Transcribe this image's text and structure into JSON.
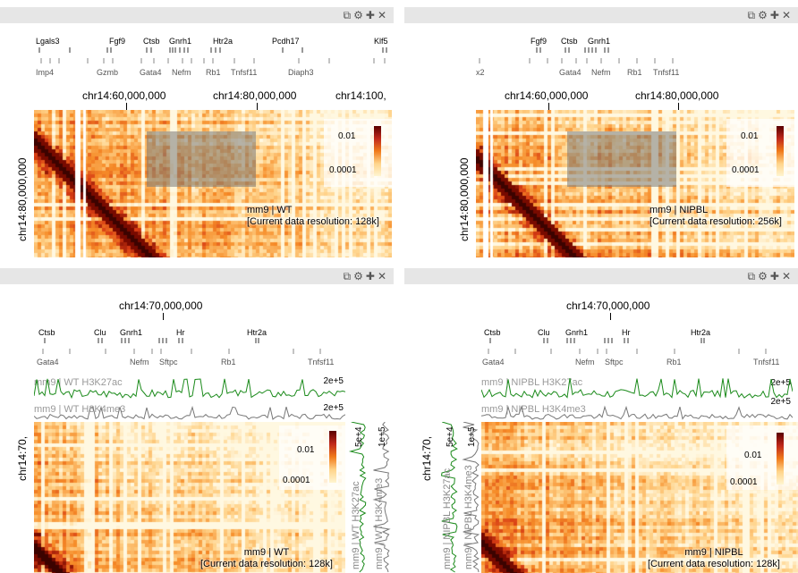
{
  "panels": [
    {
      "id": "top-left",
      "controls": [
        "⧉",
        "⚙",
        "✚",
        "✕"
      ],
      "genes_top": [
        "Lgals3",
        "Fgf9",
        "Ctsb",
        "Gnrh1",
        "Htr2a",
        "Pcdh17",
        "Klf5"
      ],
      "genes_bottom": [
        "Imp4",
        "Gzmb",
        "Gata4",
        "Nefm",
        "Rb1",
        "Tnfsf11",
        "Diaph3"
      ],
      "axis_ticks": [
        "chr14:60,000,000",
        "chr14:80,000,000",
        "chr14:100,"
      ],
      "y_axis_label": "chr14:80,000,000",
      "legend": {
        "high": "0.01",
        "low": "0.0001"
      },
      "overlay": {
        "name": "mm9 | WT",
        "resolution": "[Current data resolution: 128k]"
      }
    },
    {
      "id": "top-right",
      "controls": [
        "⧉",
        "⚙",
        "✚",
        "✕"
      ],
      "genes_top": [
        "Fgf9",
        "Ctsb",
        "Gnrh1"
      ],
      "genes_bottom": [
        "x2",
        "Gata4",
        "Nefm",
        "Rb1",
        "Tnfsf11"
      ],
      "axis_ticks": [
        "chr14:60,000,000",
        "chr14:80,000,000"
      ],
      "y_axis_label": "chr14:80,000,000",
      "legend": {
        "high": "0.01",
        "low": "0.0001"
      },
      "overlay": {
        "name": "mm9 | NIPBL",
        "resolution": "[Current data resolution: 256k]"
      }
    },
    {
      "id": "bottom-left",
      "controls": [
        "⧉",
        "⚙",
        "✚",
        "✕"
      ],
      "axis_tick": "chr14:70,000,000",
      "genes_top": [
        "Ctsb",
        "Clu",
        "Gnrh1",
        "Hr",
        "Htr2a"
      ],
      "genes_bottom": [
        "Gata4",
        "Nefm",
        "Sftpc",
        "Rb1",
        "Tnfsf11"
      ],
      "tracks": [
        {
          "label": "mm9 | WT H3K27ac",
          "max": "2e+5",
          "color": "#1a8a1a"
        },
        {
          "label": "mm9 | WT H3K4me3",
          "max": "2e+5",
          "color": "#777777"
        }
      ],
      "vtracks": [
        {
          "label": "mm9 | WT H3K27ac",
          "max": "5e+4",
          "color": "#1a8a1a"
        },
        {
          "label": "mm9 | WT H3K4me3",
          "max": "1e+5",
          "color": "#777777"
        }
      ],
      "y_axis_label": "chr14:70,",
      "legend": {
        "high": "0.01",
        "low": "0.0001"
      },
      "overlay": {
        "name": "mm9 | WT",
        "resolution": "[Current data resolution: 128k]"
      }
    },
    {
      "id": "bottom-right",
      "controls": [
        "⧉",
        "⚙",
        "✚",
        "✕"
      ],
      "axis_tick": "chr14:70,000,000",
      "genes_top": [
        "Ctsb",
        "Clu",
        "Gnrh1",
        "Hr",
        "Htr2a"
      ],
      "genes_bottom": [
        "Gata4",
        "Nefm",
        "Sftpc",
        "Rb1",
        "Tnfsf11"
      ],
      "tracks": [
        {
          "label": "mm9 | NIPBL H3K27ac",
          "max": "2e+5",
          "color": "#1a8a1a"
        },
        {
          "label": "mm9 | NIPBL H3K4me3",
          "max": "2e+5",
          "color": "#777777"
        }
      ],
      "vtracks": [
        {
          "label": "mm9 | NIPBL H3K27ac",
          "max": "5e+4",
          "color": "#1a8a1a"
        },
        {
          "label": "mm9 | NIPBL H3K4me3",
          "max": "1e+5",
          "color": "#777777"
        }
      ],
      "y_axis_label": "chr14:70,",
      "legend": {
        "high": "0.01",
        "low": "0.0001"
      },
      "overlay": {
        "name": "mm9 | NIPBL",
        "resolution": "[Current data resolution: 128k]"
      }
    }
  ],
  "colors": {
    "topbar": "#e6e6e6",
    "heat_low": "#fff5d0",
    "heat_mid": "#f07a1a",
    "heat_high": "#5a0000",
    "green_track": "#1a8a1a",
    "grey_track": "#777777"
  }
}
